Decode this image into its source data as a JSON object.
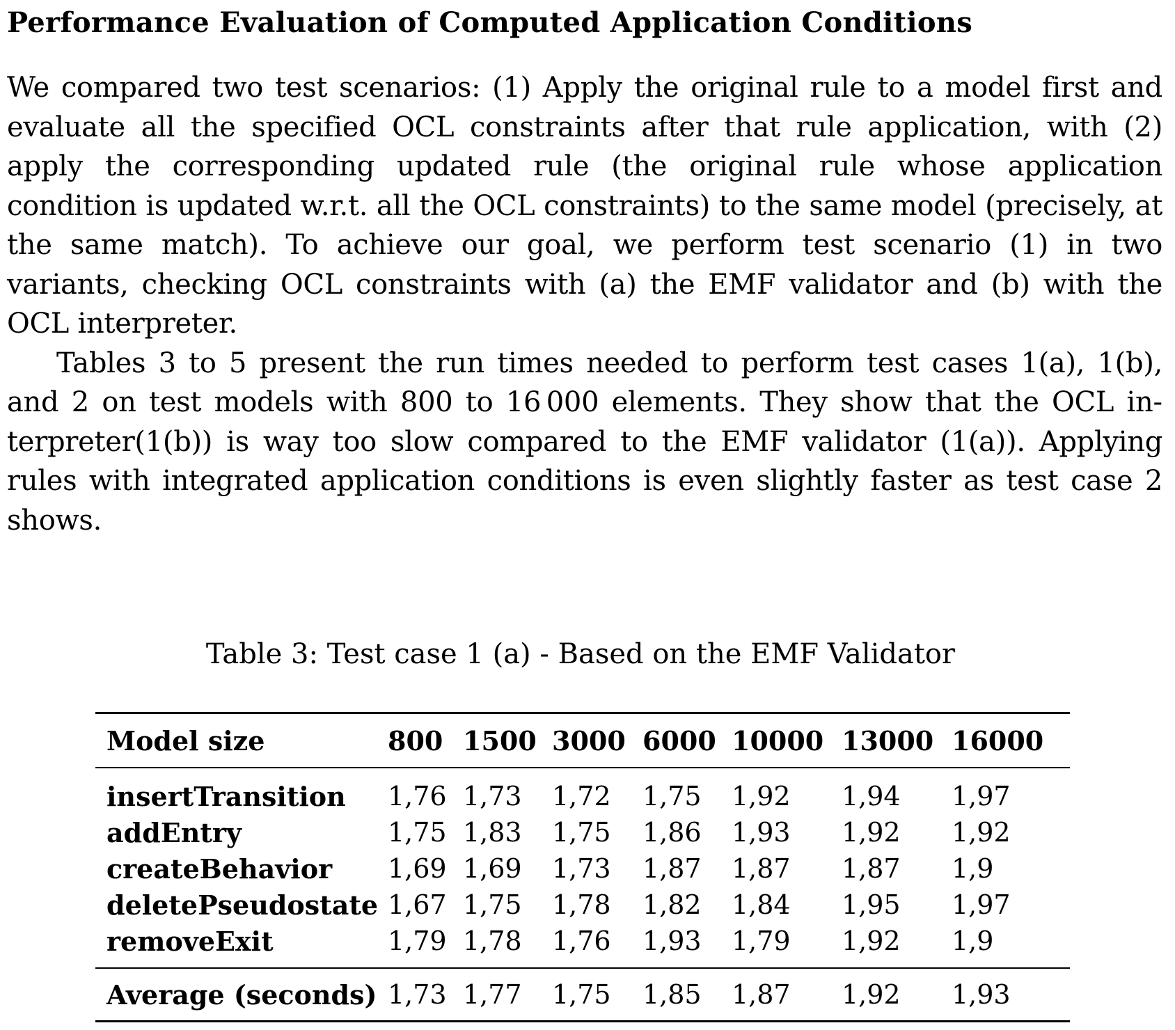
{
  "section": {
    "title": "Performance Evaluation of Computed Application Conditions"
  },
  "paragraphs": {
    "p1": "We compared two test scenarios: (1) Apply the original rule to a model first and evaluate all the specified OCL constraints after that rule application, with (2) apply the corresponding updated rule (the original rule whose application condition is updated w.r.t. all the OCL constraints) to the same model (precisely, at the same match). To achieve our goal, we perform test scenario (1) in two variants, checking OCL constraints with (a) the EMF validator and (b) with the OCL interpreter.",
    "p2": "Tables 3 to 5 present the run times needed to perform test cases 1(a), 1(b), and 2 on test models with 800 to 16 000 elements. They show that the OCL in­terpreter(1(b)) is way too slow compared to the EMF validator (1(a)). Applying rules with integrated application conditions is even slightly faster as test case 2 shows."
  },
  "table": {
    "caption": "Table 3: Test case 1 (a) - Based on the EMF Validator",
    "header": {
      "label": "Model size",
      "columns": [
        "800",
        "1500",
        "3000",
        "6000",
        "10000",
        "13000",
        "16000"
      ]
    },
    "rows": [
      {
        "label": "insertTransition",
        "values": [
          "1,76",
          "1,73",
          "1,72",
          "1,75",
          "1,92",
          "1,94",
          "1,97"
        ]
      },
      {
        "label": "addEntry",
        "values": [
          "1,75",
          "1,83",
          "1,75",
          "1,86",
          "1,93",
          "1,92",
          "1,92"
        ]
      },
      {
        "label": "createBehavior",
        "values": [
          "1,69",
          "1,69",
          "1,73",
          "1,87",
          "1,87",
          "1,87",
          "1,9"
        ]
      },
      {
        "label": "deletePseudostate",
        "values": [
          "1,67",
          "1,75",
          "1,78",
          "1,82",
          "1,84",
          "1,95",
          "1,97"
        ]
      },
      {
        "label": "removeExit",
        "values": [
          "1,79",
          "1,78",
          "1,76",
          "1,93",
          "1,79",
          "1,92",
          "1,9"
        ]
      }
    ],
    "average": {
      "label": "Average (seconds)",
      "values": [
        "1,73",
        "1,77",
        "1,75",
        "1,85",
        "1,87",
        "1,92",
        "1,93"
      ]
    }
  }
}
